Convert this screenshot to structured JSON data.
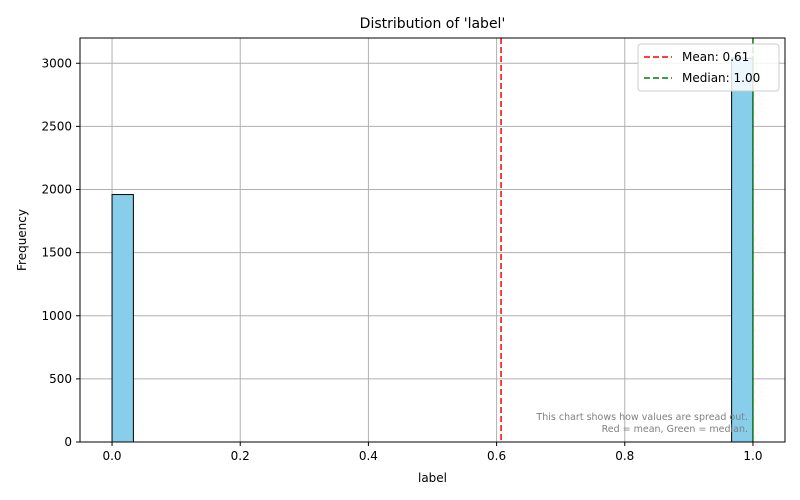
{
  "chart_data": {
    "type": "bar",
    "title": "Distribution of 'label'",
    "xlabel": "label",
    "ylabel": "Frequency",
    "xlim": [
      -0.05,
      1.05
    ],
    "ylim": [
      0,
      3200
    ],
    "xticks": [
      0.0,
      0.2,
      0.4,
      0.6,
      0.8,
      1.0
    ],
    "xtick_labels": [
      "0.0",
      "0.2",
      "0.4",
      "0.6",
      "0.8",
      "1.0"
    ],
    "yticks": [
      0,
      500,
      1000,
      1500,
      2000,
      2500,
      3000
    ],
    "ytick_labels": [
      "0",
      "500",
      "1000",
      "1500",
      "2000",
      "2500",
      "3000"
    ],
    "grid": true,
    "bins": [
      {
        "start": 0.0,
        "end": 0.0333,
        "count": 1960
      },
      {
        "start": 0.9667,
        "end": 1.0,
        "count": 3040
      }
    ],
    "reference_lines": [
      {
        "label": "Mean: 0.61",
        "x": 0.607,
        "color": "#ff0000",
        "style": "dashed"
      },
      {
        "label": "Median: 1.00",
        "x": 1.0,
        "color": "#008000",
        "style": "dashed"
      }
    ],
    "legend_placement": "top-right",
    "colors": {
      "bar_fill": "#87ceeb",
      "bar_edge": "#000000",
      "grid": "#b0b0b0",
      "note": "#808080"
    },
    "annotation": {
      "line1": "This chart shows how values are spread out.",
      "line2": "Red = mean, Green = median."
    }
  }
}
